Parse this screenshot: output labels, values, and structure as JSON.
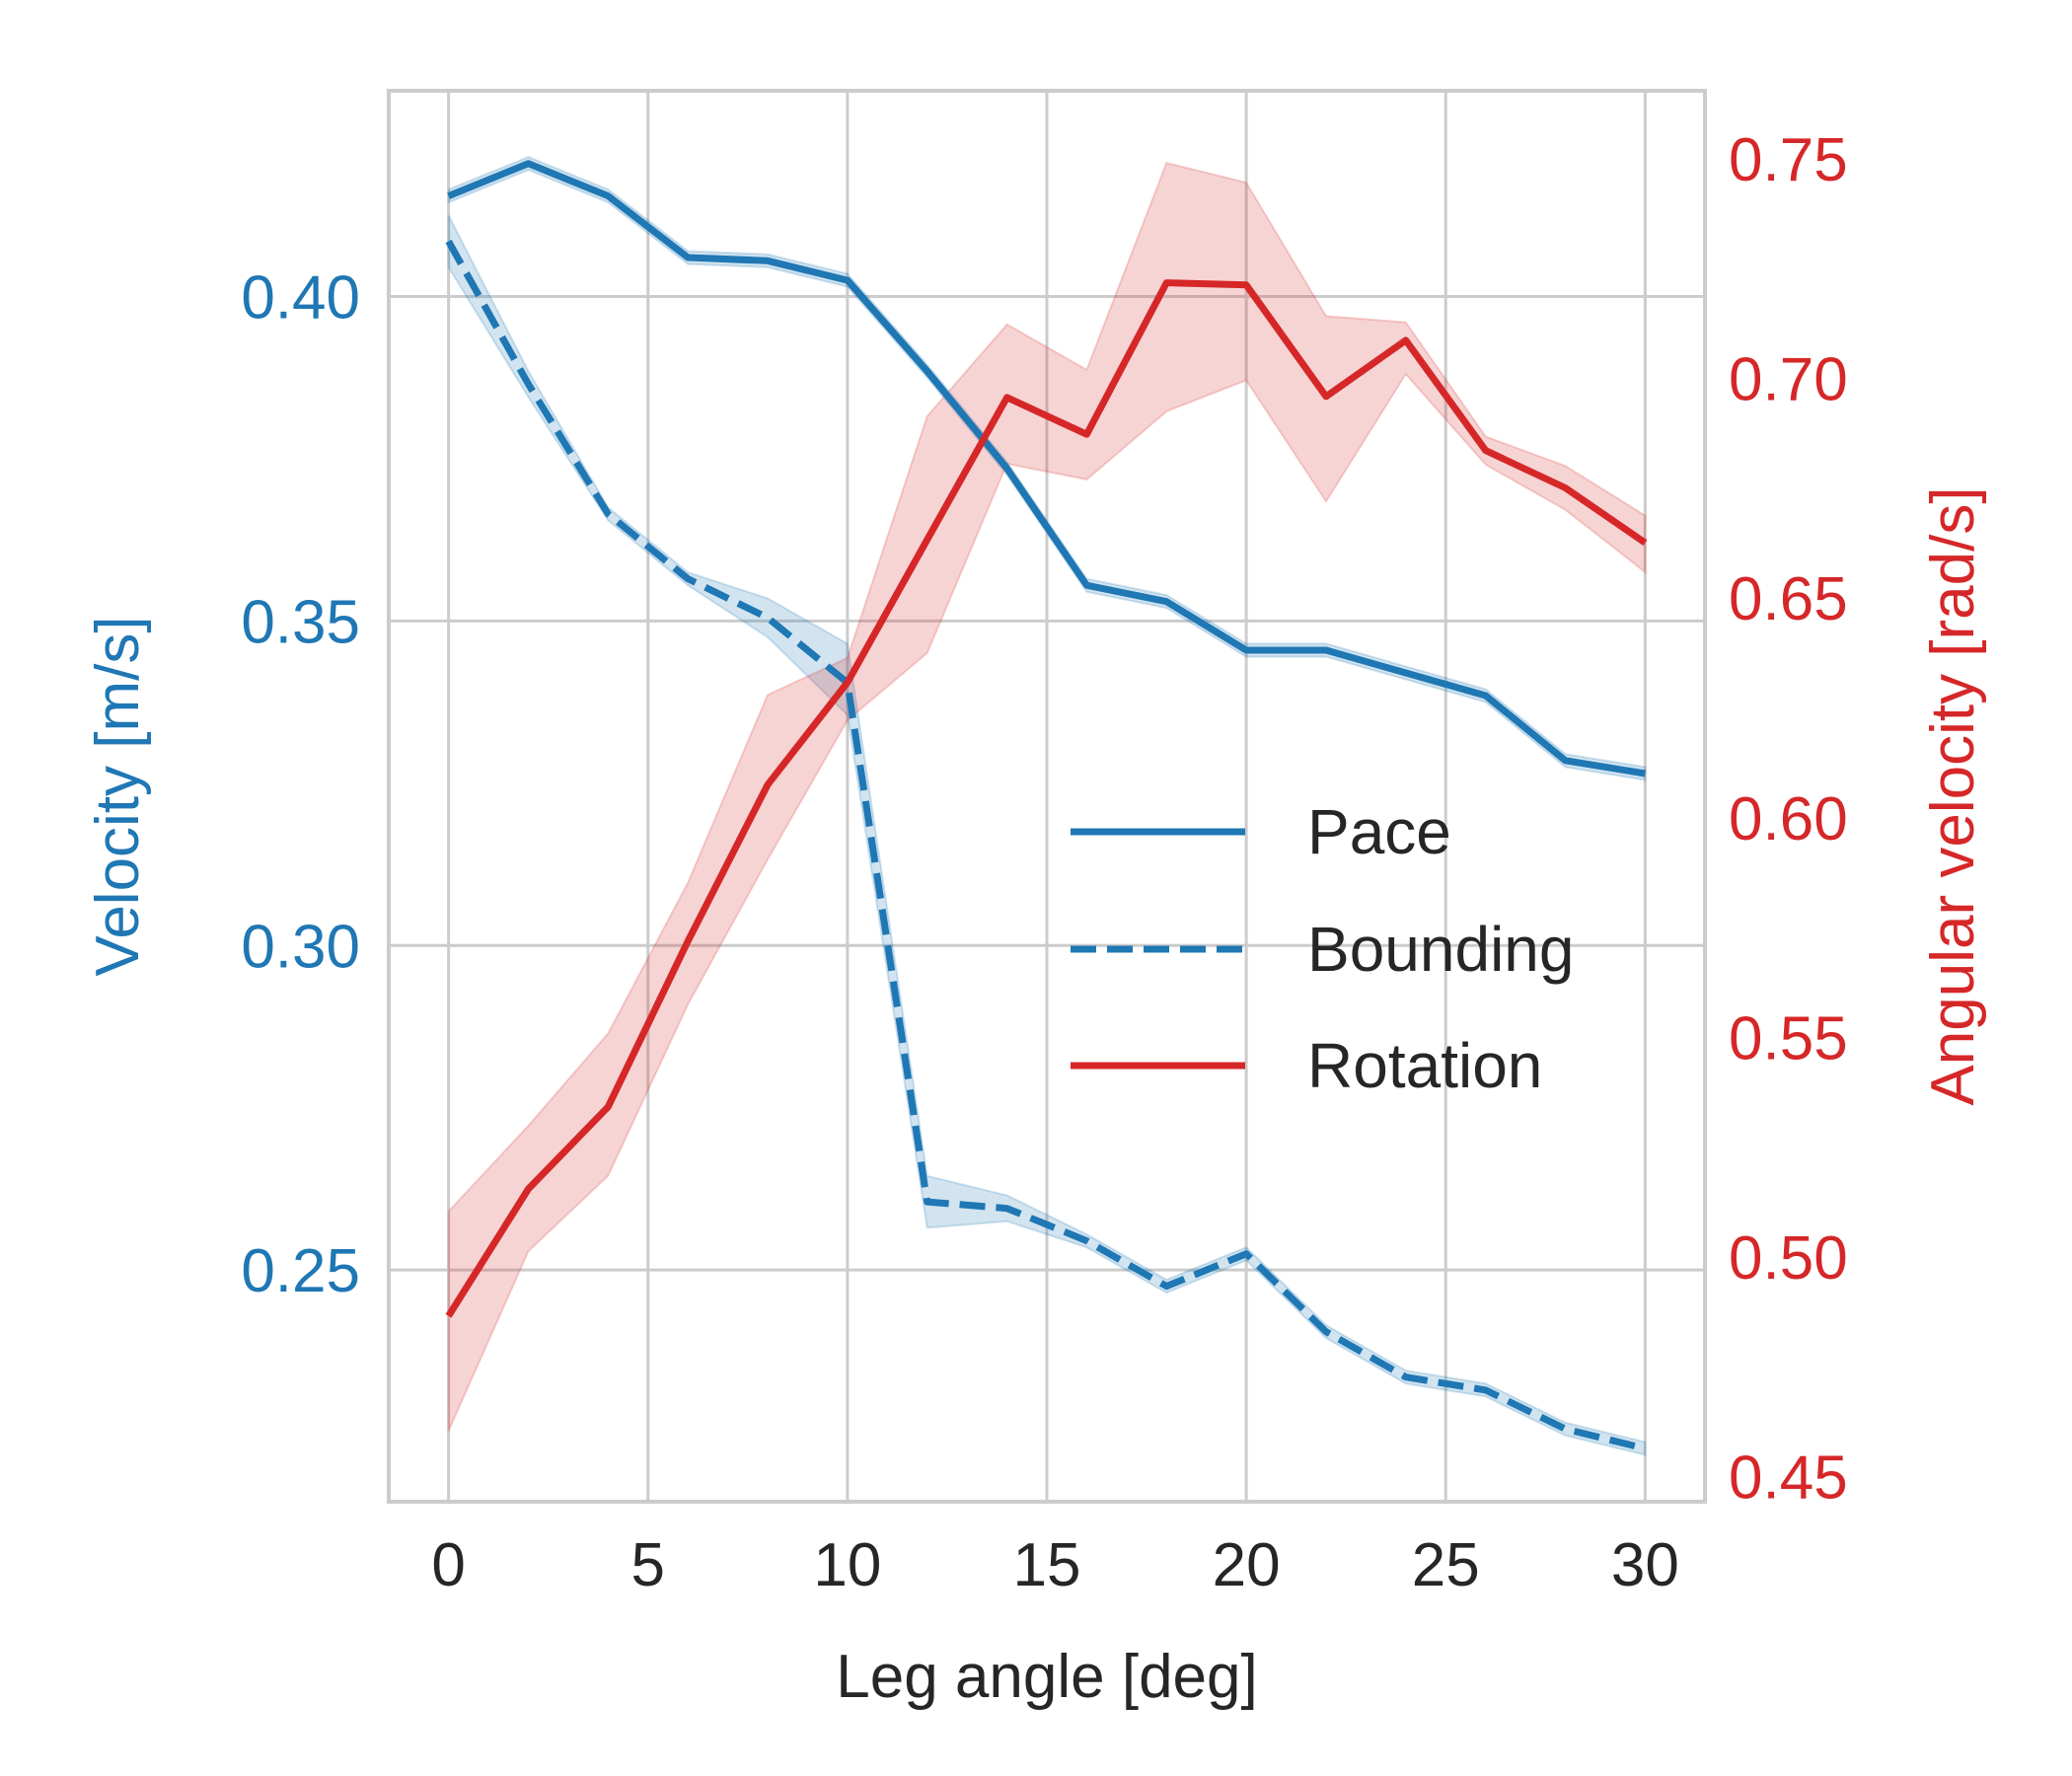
{
  "chart_data": {
    "type": "line",
    "xlabel": "Leg angle [deg]",
    "ylabel": "Velocity [m/s]",
    "y2label": "Angular velocity [rad/s]",
    "xlim": [
      -1.5,
      31.5
    ],
    "ylim": [
      0.2143,
      0.4317
    ],
    "y2lim": [
      0.4443,
      0.7655
    ],
    "xticks": [
      0,
      5,
      10,
      15,
      20,
      25,
      30
    ],
    "yticks": [
      0.25,
      0.3,
      0.35,
      0.4
    ],
    "y2ticks": [
      0.45,
      0.5,
      0.55,
      0.6,
      0.65,
      0.7,
      0.75
    ],
    "xtick_labels": [
      "0",
      "5",
      "10",
      "15",
      "20",
      "25",
      "30"
    ],
    "ytick_labels": [
      "0.25",
      "0.30",
      "0.35",
      "0.40"
    ],
    "y2tick_labels": [
      "0.45",
      "0.50",
      "0.55",
      "0.60",
      "0.65",
      "0.70",
      "0.75"
    ],
    "grid": true,
    "legend_position": "center-right",
    "colors": {
      "pace": "#1f77b4",
      "bounding": "#1f77b4",
      "rotation": "#d62728",
      "grid": "#cccccc",
      "text": "#262626"
    },
    "x": [
      0,
      2,
      4,
      6,
      8,
      10,
      12,
      14,
      16,
      18,
      20,
      22,
      24,
      26,
      28,
      30
    ],
    "series": [
      {
        "name": "Pace",
        "axis": "left",
        "style": "solid",
        "values": [
          0.4155,
          0.4205,
          0.4155,
          0.406,
          0.4055,
          0.4025,
          0.3885,
          0.3735,
          0.3555,
          0.353,
          0.3455,
          0.3455,
          0.342,
          0.3385,
          0.3285,
          0.3265
        ],
        "lower": [
          0.4145,
          0.4195,
          0.4145,
          0.405,
          0.4045,
          0.4015,
          0.3875,
          0.3725,
          0.3545,
          0.352,
          0.3445,
          0.3445,
          0.341,
          0.3375,
          0.3275,
          0.3255
        ],
        "upper": [
          0.4165,
          0.4215,
          0.4165,
          0.407,
          0.4065,
          0.4035,
          0.3895,
          0.3745,
          0.3565,
          0.354,
          0.3465,
          0.3465,
          0.343,
          0.3395,
          0.3295,
          0.3275
        ]
      },
      {
        "name": "Bounding",
        "axis": "left",
        "style": "dashed",
        "values": [
          0.4085,
          0.3865,
          0.3665,
          0.3565,
          0.3505,
          0.3405,
          0.2605,
          0.2595,
          0.2545,
          0.2475,
          0.2525,
          0.2405,
          0.2335,
          0.2315,
          0.2255,
          0.2225
        ],
        "lower": [
          0.4045,
          0.3845,
          0.3655,
          0.3555,
          0.3475,
          0.3355,
          0.2565,
          0.2575,
          0.2535,
          0.2465,
          0.2515,
          0.2395,
          0.2325,
          0.2305,
          0.2245,
          0.2215
        ],
        "upper": [
          0.4125,
          0.3885,
          0.3675,
          0.3575,
          0.3535,
          0.3465,
          0.2645,
          0.2615,
          0.2555,
          0.2485,
          0.2535,
          0.2415,
          0.2345,
          0.2325,
          0.2265,
          0.2235
        ]
      },
      {
        "name": "Rotation",
        "axis": "right",
        "style": "solid",
        "values": [
          0.4866,
          0.5155,
          0.5342,
          0.5719,
          0.6075,
          0.6308,
          0.6633,
          0.6957,
          0.6873,
          0.7218,
          0.7213,
          0.6959,
          0.7087,
          0.6836,
          0.6751,
          0.6626
        ],
        "lower": [
          0.4604,
          0.5013,
          0.5185,
          0.5575,
          0.5905,
          0.6222,
          0.6375,
          0.6806,
          0.677,
          0.6925,
          0.6996,
          0.672,
          0.701,
          0.6804,
          0.6701,
          0.6559
        ],
        "upper": [
          0.5104,
          0.5299,
          0.5509,
          0.5852,
          0.628,
          0.6364,
          0.6914,
          0.7123,
          0.702,
          0.7491,
          0.7446,
          0.7142,
          0.7128,
          0.6868,
          0.6801,
          0.6688
        ]
      }
    ]
  }
}
